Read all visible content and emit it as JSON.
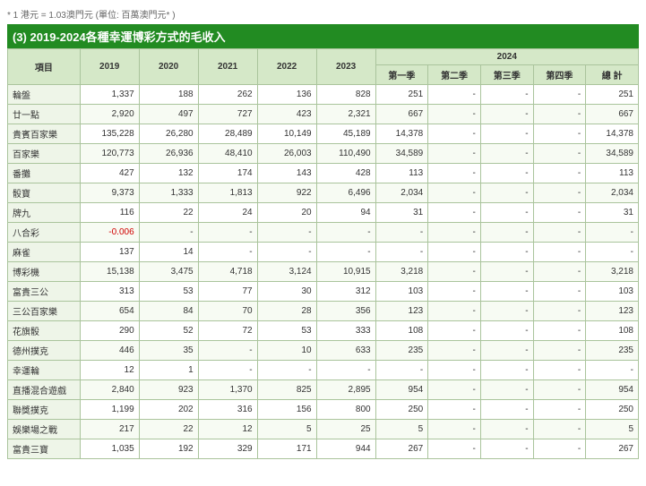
{
  "note": "* 1 港元 = 1.03澳門元 (單位: 百萬澳門元* )",
  "title": "(3) 2019-2024各種幸運博彩方式的毛收入",
  "header": {
    "item": "項目",
    "years": [
      "2019",
      "2020",
      "2021",
      "2022",
      "2023"
    ],
    "year_span": "2024",
    "quarters": [
      "第一季",
      "第二季",
      "第三季",
      "第四季",
      "總 計"
    ]
  },
  "rows": [
    {
      "label": "輪盤",
      "y": [
        "1,337",
        "188",
        "262",
        "136",
        "828"
      ],
      "q": [
        "251",
        "-",
        "-",
        "-",
        "251"
      ]
    },
    {
      "label": "廿一點",
      "y": [
        "2,920",
        "497",
        "727",
        "423",
        "2,321"
      ],
      "q": [
        "667",
        "-",
        "-",
        "-",
        "667"
      ]
    },
    {
      "label": "貴賓百家樂",
      "y": [
        "135,228",
        "26,280",
        "28,489",
        "10,149",
        "45,189"
      ],
      "q": [
        "14,378",
        "-",
        "-",
        "-",
        "14,378"
      ]
    },
    {
      "label": "百家樂",
      "y": [
        "120,773",
        "26,936",
        "48,410",
        "26,003",
        "110,490"
      ],
      "q": [
        "34,589",
        "-",
        "-",
        "-",
        "34,589"
      ]
    },
    {
      "label": "番攤",
      "y": [
        "427",
        "132",
        "174",
        "143",
        "428"
      ],
      "q": [
        "113",
        "-",
        "-",
        "-",
        "113"
      ]
    },
    {
      "label": "骰寶",
      "y": [
        "9,373",
        "1,333",
        "1,813",
        "922",
        "6,496"
      ],
      "q": [
        "2,034",
        "-",
        "-",
        "-",
        "2,034"
      ]
    },
    {
      "label": "牌九",
      "y": [
        "116",
        "22",
        "24",
        "20",
        "94"
      ],
      "q": [
        "31",
        "-",
        "-",
        "-",
        "31"
      ]
    },
    {
      "label": "八合彩",
      "y": [
        "-0.006",
        "-",
        "-",
        "-",
        "-"
      ],
      "q": [
        "-",
        "-",
        "-",
        "-",
        "-"
      ],
      "neg": [
        0
      ]
    },
    {
      "label": "麻雀",
      "y": [
        "137",
        "14",
        "-",
        "-",
        "-"
      ],
      "q": [
        "-",
        "-",
        "-",
        "-",
        "-"
      ]
    },
    {
      "label": "博彩機",
      "y": [
        "15,138",
        "3,475",
        "4,718",
        "3,124",
        "10,915"
      ],
      "q": [
        "3,218",
        "-",
        "-",
        "-",
        "3,218"
      ]
    },
    {
      "label": "富貴三公",
      "y": [
        "313",
        "53",
        "77",
        "30",
        "312"
      ],
      "q": [
        "103",
        "-",
        "-",
        "-",
        "103"
      ]
    },
    {
      "label": "三公百家樂",
      "y": [
        "654",
        "84",
        "70",
        "28",
        "356"
      ],
      "q": [
        "123",
        "-",
        "-",
        "-",
        "123"
      ]
    },
    {
      "label": "花旗骰",
      "y": [
        "290",
        "52",
        "72",
        "53",
        "333"
      ],
      "q": [
        "108",
        "-",
        "-",
        "-",
        "108"
      ]
    },
    {
      "label": "德州撲克",
      "y": [
        "446",
        "35",
        "-",
        "10",
        "633"
      ],
      "q": [
        "235",
        "-",
        "-",
        "-",
        "235"
      ]
    },
    {
      "label": "幸運輪",
      "y": [
        "12",
        "1",
        "-",
        "-",
        "-"
      ],
      "q": [
        "-",
        "-",
        "-",
        "-",
        "-"
      ]
    },
    {
      "label": "直播混合遊戲",
      "y": [
        "2,840",
        "923",
        "1,370",
        "825",
        "2,895"
      ],
      "q": [
        "954",
        "-",
        "-",
        "-",
        "954"
      ]
    },
    {
      "label": "聯獎撲克",
      "y": [
        "1,199",
        "202",
        "316",
        "156",
        "800"
      ],
      "q": [
        "250",
        "-",
        "-",
        "-",
        "250"
      ]
    },
    {
      "label": "娛樂場之戰",
      "y": [
        "217",
        "22",
        "12",
        "5",
        "25"
      ],
      "q": [
        "5",
        "-",
        "-",
        "-",
        "5"
      ]
    },
    {
      "label": "富貴三寶",
      "y": [
        "1,035",
        "192",
        "329",
        "171",
        "944"
      ],
      "q": [
        "267",
        "-",
        "-",
        "-",
        "267"
      ]
    }
  ]
}
